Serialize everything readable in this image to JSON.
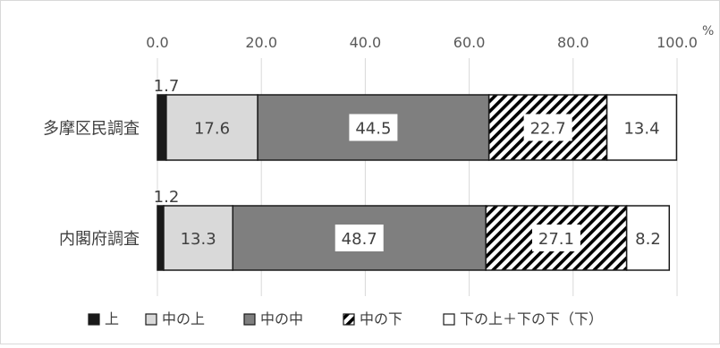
{
  "chart_data": {
    "type": "bar",
    "orientation": "horizontal",
    "stacked": true,
    "title": "",
    "xlabel": "",
    "ylabel": "",
    "unit": "%",
    "xlim": [
      0,
      100
    ],
    "x_ticks": [
      "0.0",
      "20.0",
      "40.0",
      "60.0",
      "80.0",
      "100.0"
    ],
    "grid": true,
    "legend_position": "bottom",
    "categories": [
      "多摩区民調査",
      "内閣府調査"
    ],
    "series": [
      {
        "name": "上",
        "values": [
          1.7,
          1.2
        ],
        "labels": [
          "1.7",
          "1.2"
        ],
        "fill": "#1a1a1a",
        "pattern": "solid"
      },
      {
        "name": "中の上",
        "values": [
          17.6,
          13.3
        ],
        "labels": [
          "17.6",
          "13.3"
        ],
        "fill": "#d9d9d9",
        "pattern": "solid"
      },
      {
        "name": "中の中",
        "values": [
          44.5,
          48.7
        ],
        "labels": [
          "44.5",
          "48.7"
        ],
        "fill": "#7f7f7f",
        "pattern": "solid"
      },
      {
        "name": "中の下",
        "values": [
          22.7,
          27.1
        ],
        "labels": [
          "22.7",
          "27.1"
        ],
        "fill": "#000000",
        "pattern": "hatch"
      },
      {
        "name": "下の上＋下の下（下）",
        "values": [
          13.4,
          8.2
        ],
        "labels": [
          "13.4",
          "8.2"
        ],
        "fill": "#ffffff",
        "pattern": "solid"
      }
    ]
  }
}
